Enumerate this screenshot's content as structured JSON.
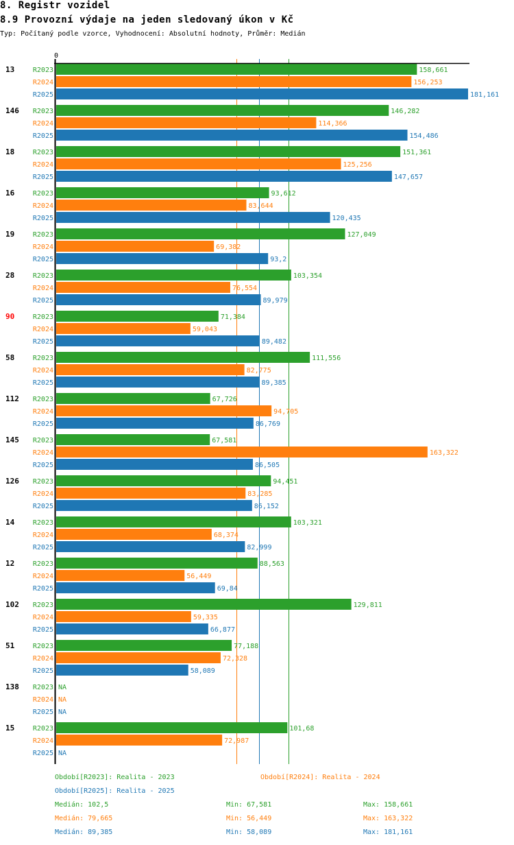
{
  "header": {
    "section_title": "8. Registr vozidel",
    "chart_title": "8.9 Provozní výdaje na jeden sledovaný úkon v Kč",
    "subtitle": "Typ: Počítaný podle vzorce, Vyhodnocení: Absolutní hodnoty, Průměr: Medián"
  },
  "colors": {
    "R2023": "#2ca02c",
    "R2024": "#ff7f0e",
    "R2025": "#1f77b4",
    "highlight": "#ff0000"
  },
  "chart_data": {
    "type": "bar",
    "orientation": "horizontal",
    "title": "8.9 Provozní výdaje na jeden sledovaný úkon v Kč",
    "xlabel": "",
    "ylabel": "",
    "xlim": [
      0,
      181.161
    ],
    "x_tick_labels": [
      "0"
    ],
    "grid": false,
    "categories": [
      "13",
      "146",
      "18",
      "16",
      "19",
      "28",
      "90",
      "58",
      "112",
      "145",
      "126",
      "14",
      "12",
      "102",
      "51",
      "138",
      "15"
    ],
    "highlighted_category": "90",
    "series": [
      {
        "name": "R2023",
        "values": [
          158.661,
          146.282,
          151.361,
          93.612,
          127.049,
          103.354,
          71.384,
          111.556,
          67.726,
          67.581,
          94.451,
          103.321,
          88.563,
          129.811,
          77.188,
          null,
          101.68
        ],
        "labels": [
          "158,661",
          "146,282",
          "151,361",
          "93,612",
          "127,049",
          "103,354",
          "71,384",
          "111,556",
          "67,726",
          "67,581",
          "94,451",
          "103,321",
          "88,563",
          "129,811",
          "77,188",
          "NA",
          "101,68"
        ]
      },
      {
        "name": "R2024",
        "values": [
          156.253,
          114.366,
          125.256,
          83.644,
          69.382,
          76.554,
          59.043,
          82.775,
          94.705,
          163.322,
          83.285,
          68.374,
          56.449,
          59.335,
          72.328,
          null,
          72.987
        ],
        "labels": [
          "156,253",
          "114,366",
          "125,256",
          "83,644",
          "69,382",
          "76,554",
          "59,043",
          "82,775",
          "94,705",
          "163,322",
          "83,285",
          "68,374",
          "56,449",
          "59,335",
          "72,328",
          "NA",
          "72,987"
        ]
      },
      {
        "name": "R2025",
        "values": [
          181.161,
          154.486,
          147.657,
          120.435,
          93.2,
          89.979,
          89.482,
          89.385,
          86.769,
          86.505,
          86.152,
          82.999,
          69.84,
          66.877,
          58.089,
          null,
          null
        ],
        "labels": [
          "181,161",
          "154,486",
          "147,657",
          "120,435",
          "93,2",
          "89,979",
          "89,482",
          "89,385",
          "86,769",
          "86,505",
          "86,152",
          "82,999",
          "69,84",
          "66,877",
          "58,089",
          "NA",
          "NA"
        ]
      }
    ],
    "medians": {
      "R2023": 102.5,
      "R2024": 79.665,
      "R2025": 89.385
    },
    "legend": {
      "placement": "bottom",
      "entries": [
        "Období[R2023]: Realita - 2023",
        "Období[R2024]: Realita - 2024",
        "Období[R2025]: Realita - 2025"
      ]
    },
    "stats": [
      {
        "series": "R2023",
        "median": "Medián: 102,5",
        "min": "Min: 67,581",
        "max": "Max: 158,661"
      },
      {
        "series": "R2024",
        "median": "Medián: 79,665",
        "min": "Min: 56,449",
        "max": "Max: 163,322"
      },
      {
        "series": "R2025",
        "median": "Medián: 89,385",
        "min": "Min: 58,089",
        "max": "Max: 181,161"
      }
    ]
  }
}
